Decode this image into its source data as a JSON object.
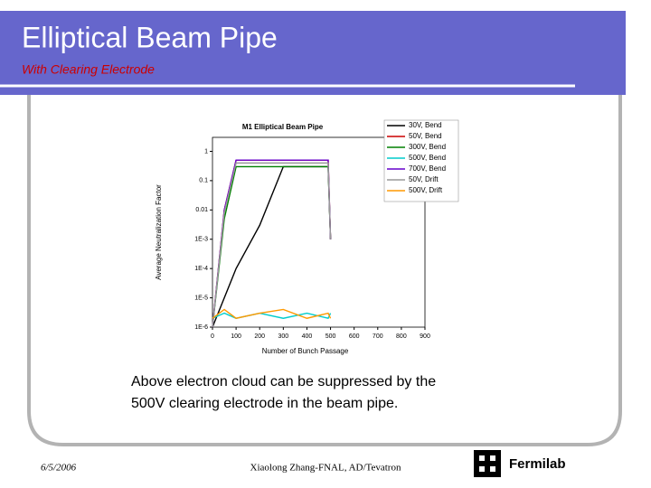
{
  "slide": {
    "title": "Elliptical Beam Pipe",
    "subtitle": "With Clearing Electrode",
    "caption": [
      "Above electron cloud can be suppressed by the",
      "500V clearing electrode in the beam pipe."
    ],
    "date": "6/5/2006",
    "author": "Xiaolong Zhang-FNAL, AD/Tevatron",
    "logo": "Fermilab"
  },
  "chart_data": {
    "type": "line",
    "title": "M1 Elliptical Beam Pipe",
    "x_label": "Number of Bunch Passage",
    "y_label": "Average Neutralization Factor",
    "log_y": true,
    "x": [
      0,
      50,
      100,
      200,
      300,
      400,
      490,
      500
    ],
    "xlim": [
      0,
      900
    ],
    "xticks": [
      0,
      100,
      200,
      300,
      400,
      500,
      600,
      700,
      800,
      900
    ],
    "ylim": [
      1e-06,
      3
    ],
    "yticks": [
      {
        "value": 1e-06,
        "label": "1E-6"
      },
      {
        "value": 1e-05,
        "label": "1E-5"
      },
      {
        "value": 0.0001,
        "label": "1E-4"
      },
      {
        "value": 0.001,
        "label": "1E-3"
      },
      0.01,
      0.1,
      1
    ],
    "series": [
      {
        "name": "30V, Bend",
        "color": "#000000",
        "values": [
          1e-06,
          1e-05,
          0.0001,
          0.003,
          0.3,
          0.3,
          0.3,
          0.001
        ]
      },
      {
        "name": "50V, Bend",
        "color": "#cc0000",
        "values": [
          1e-06,
          0.01,
          0.5,
          0.5,
          0.5,
          0.5,
          0.5,
          0.001
        ]
      },
      {
        "name": "300V, Bend",
        "color": "#008000",
        "values": [
          1e-06,
          0.005,
          0.3,
          0.3,
          0.3,
          0.3,
          0.3,
          0.001
        ]
      },
      {
        "name": "500V, Bend",
        "color": "#00cccc",
        "values": [
          2e-06,
          3e-06,
          2e-06,
          3e-06,
          2e-06,
          3e-06,
          2e-06,
          3e-06
        ]
      },
      {
        "name": "700V, Bend",
        "color": "#6600cc",
        "values": [
          1e-06,
          0.01,
          0.5,
          0.5,
          0.5,
          0.5,
          0.5,
          0.001
        ]
      },
      {
        "name": "50V, Drift",
        "color": "#999999",
        "values": [
          1e-06,
          0.008,
          0.4,
          0.4,
          0.4,
          0.4,
          0.4,
          0.001
        ]
      },
      {
        "name": "500V, Drift",
        "color": "#ff9900",
        "values": [
          2e-06,
          4e-06,
          2e-06,
          3e-06,
          4e-06,
          2e-06,
          3e-06,
          2e-06
        ]
      }
    ]
  }
}
